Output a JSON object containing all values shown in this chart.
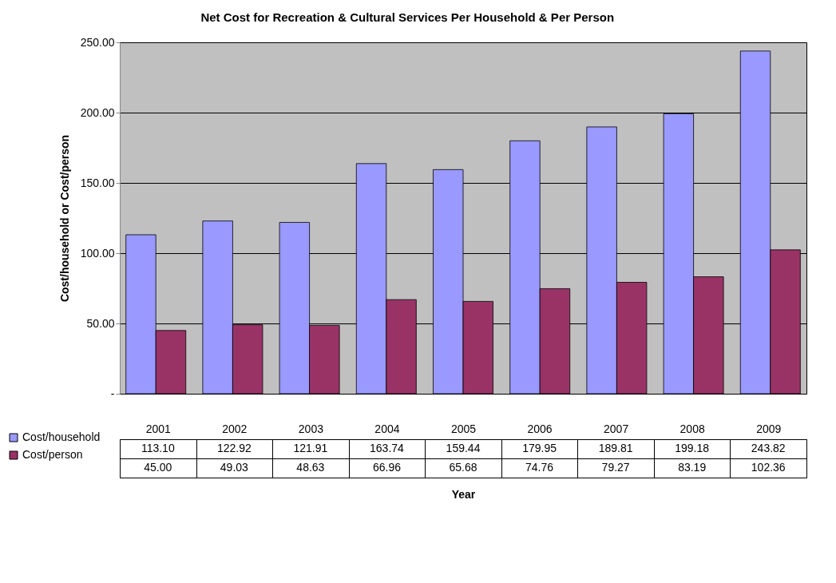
{
  "chart_data": {
    "type": "bar",
    "title": "Net Cost for Recreation & Cultural Services Per Household & Per Person",
    "xlabel": "Year",
    "ylabel": "Cost/household or Cost/person",
    "categories": [
      "2001",
      "2002",
      "2003",
      "2004",
      "2005",
      "2006",
      "2007",
      "2008",
      "2009"
    ],
    "series": [
      {
        "name": "Cost/household",
        "color": "#9999ff",
        "values": [
          113.1,
          122.92,
          121.91,
          163.74,
          159.44,
          179.95,
          189.81,
          199.18,
          243.82
        ],
        "value_labels": [
          "113.10",
          "122.92",
          "121.91",
          "163.74",
          "159.44",
          "179.95",
          "189.81",
          "199.18",
          "243.82"
        ]
      },
      {
        "name": "Cost/person",
        "color": "#993366",
        "values": [
          45.0,
          49.03,
          48.63,
          66.96,
          65.68,
          74.76,
          79.27,
          83.19,
          102.36
        ],
        "value_labels": [
          "45.00",
          "49.03",
          "48.63",
          "66.96",
          "65.68",
          "74.76",
          "79.27",
          "83.19",
          "102.36"
        ]
      }
    ],
    "ylim": [
      0,
      250
    ],
    "yticks": [
      {
        "value": 0,
        "label": "-"
      },
      {
        "value": 50,
        "label": "50.00"
      },
      {
        "value": 100,
        "label": "100.00"
      },
      {
        "value": 150,
        "label": "150.00"
      },
      {
        "value": 200,
        "label": "200.00"
      },
      {
        "value": 250,
        "label": "250.00"
      }
    ],
    "grid": "y",
    "legend": "bottom left"
  }
}
